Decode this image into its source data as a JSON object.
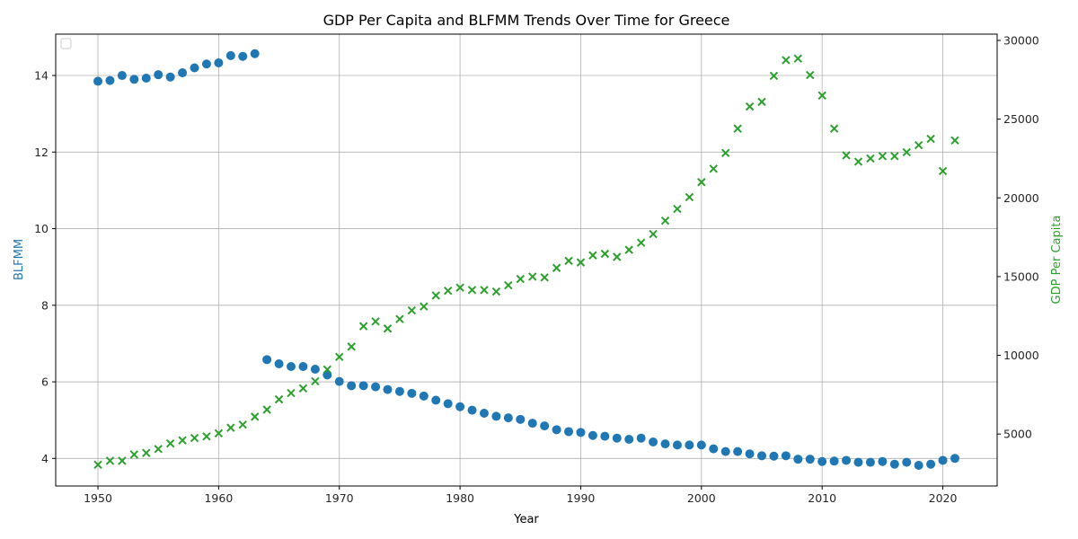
{
  "chart_data": {
    "type": "scatter",
    "title": "GDP Per Capita and BLFMM Trends Over Time for Greece",
    "xlabel": "Year",
    "ylabel_left": "BLFMM",
    "ylabel_right": "GDP Per Capita",
    "xlim": [
      1946.5,
      2024.5
    ],
    "ylim_left": [
      3.28,
      15.08
    ],
    "ylim_right": [
      1700,
      30400
    ],
    "x_ticks": [
      1950,
      1960,
      1970,
      1980,
      1990,
      2000,
      2010,
      2020
    ],
    "y_ticks_left": [
      4,
      6,
      8,
      10,
      12,
      14
    ],
    "y_ticks_right": [
      5000,
      10000,
      15000,
      20000,
      25000,
      30000
    ],
    "grid": true,
    "legend": "top-left (empty)",
    "colors": {
      "blfmm": "#1f77b4",
      "gdp": "#2ca02c"
    },
    "series": [
      {
        "axis": "left",
        "marker": "circle",
        "x": [
          1950,
          1951,
          1952,
          1953,
          1954,
          1955,
          1956,
          1957,
          1958,
          1959,
          1960,
          1961,
          1962,
          1963,
          1964,
          1965,
          1966,
          1967,
          1968,
          1969,
          1970,
          1971,
          1972,
          1973,
          1974,
          1975,
          1976,
          1977,
          1978,
          1979,
          1980,
          1981,
          1982,
          1983,
          1984,
          1985,
          1986,
          1987,
          1988,
          1989,
          1990,
          1991,
          1992,
          1993,
          1994,
          1995,
          1996,
          1997,
          1998,
          1999,
          2000,
          2001,
          2002,
          2003,
          2004,
          2005,
          2006,
          2007,
          2008,
          2009,
          2010,
          2011,
          2012,
          2013,
          2014,
          2015,
          2016,
          2017,
          2018,
          2019,
          2020,
          2021
        ],
        "values": [
          13.85,
          13.87,
          14.0,
          13.9,
          13.93,
          14.02,
          13.96,
          14.07,
          14.2,
          14.3,
          14.33,
          14.52,
          14.5,
          14.57,
          6.58,
          6.47,
          6.4,
          6.4,
          6.33,
          6.18,
          6.01,
          5.9,
          5.9,
          5.87,
          5.8,
          5.75,
          5.7,
          5.63,
          5.52,
          5.43,
          5.35,
          5.26,
          5.18,
          5.1,
          5.06,
          5.02,
          4.92,
          4.85,
          4.75,
          4.7,
          4.68,
          4.6,
          4.58,
          4.53,
          4.5,
          4.53,
          4.43,
          4.38,
          4.35,
          4.35,
          4.35,
          4.25,
          4.18,
          4.18,
          4.12,
          4.07,
          4.06,
          4.07,
          3.98,
          3.98,
          3.92,
          3.93,
          3.95,
          3.9,
          3.9,
          3.92,
          3.85,
          3.9,
          3.82,
          3.85,
          3.95,
          4.0
        ]
      },
      {
        "axis": "right",
        "marker": "x",
        "x": [
          1950,
          1951,
          1952,
          1953,
          1954,
          1955,
          1956,
          1957,
          1958,
          1959,
          1960,
          1961,
          1962,
          1963,
          1964,
          1965,
          1966,
          1967,
          1968,
          1969,
          1970,
          1971,
          1972,
          1973,
          1974,
          1975,
          1976,
          1977,
          1978,
          1979,
          1980,
          1981,
          1982,
          1983,
          1984,
          1985,
          1986,
          1987,
          1988,
          1989,
          1990,
          1991,
          1992,
          1993,
          1994,
          1995,
          1996,
          1997,
          1998,
          1999,
          2000,
          2001,
          2002,
          2003,
          2004,
          2005,
          2006,
          2007,
          2008,
          2009,
          2010,
          2011,
          2012,
          2013,
          2014,
          2015,
          2016,
          2017,
          2018,
          2019,
          2020,
          2021
        ],
        "values": [
          3050,
          3300,
          3300,
          3700,
          3800,
          4050,
          4400,
          4600,
          4750,
          4850,
          5050,
          5400,
          5600,
          6100,
          6550,
          7200,
          7600,
          7900,
          8350,
          9100,
          9900,
          10550,
          11850,
          12150,
          11700,
          12300,
          12850,
          13100,
          13800,
          14100,
          14300,
          14150,
          14150,
          14050,
          14450,
          14850,
          15000,
          14950,
          15550,
          16000,
          15900,
          16350,
          16450,
          16250,
          16700,
          17150,
          17700,
          18550,
          19300,
          20050,
          21000,
          21850,
          22850,
          24400,
          25800,
          26100,
          27750,
          28750,
          28850,
          27800,
          26500,
          24400,
          22700,
          22300,
          22500,
          22650,
          22650,
          22900,
          23350,
          23750,
          21700,
          23650
        ]
      }
    ]
  }
}
